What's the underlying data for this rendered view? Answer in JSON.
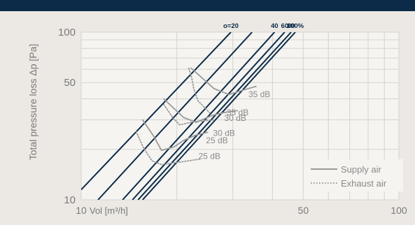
{
  "chart_data": {
    "type": "line",
    "xscale": "log",
    "yscale": "log",
    "xlim": [
      10,
      100
    ],
    "ylim": [
      10,
      100
    ],
    "grid": true,
    "legend": "bottom-right",
    "xlabel": "Vol [m³/h]",
    "ylabel": "Total pressure loss Δp [Pa]",
    "x_ticks": [
      {
        "value": 10,
        "label": "10"
      },
      {
        "value": 50,
        "label": "50"
      },
      {
        "value": 100,
        "label": "100"
      }
    ],
    "y_ticks": [
      {
        "value": 10,
        "label": "10"
      },
      {
        "value": 50,
        "label": "50"
      },
      {
        "value": 100,
        "label": "100"
      }
    ],
    "opening_lines": [
      {
        "label": "o=20",
        "points": [
          [
            10,
            11.5
          ],
          [
            29.6,
            100
          ]
        ]
      },
      {
        "label": "",
        "points": [
          [
            11.3,
            10
          ],
          [
            34.5,
            100
          ]
        ]
      },
      {
        "label": "40",
        "points": [
          [
            13.5,
            10
          ],
          [
            40.6,
            100
          ]
        ]
      },
      {
        "label": "60",
        "points": [
          [
            14.5,
            10
          ],
          [
            43.7,
            100
          ]
        ]
      },
      {
        "label": "80",
        "points": [
          [
            15.1,
            10
          ],
          [
            45.8,
            100
          ]
        ]
      },
      {
        "label": "100%",
        "points": [
          [
            15.6,
            10
          ],
          [
            47.2,
            100
          ]
        ]
      }
    ],
    "series": [
      {
        "name": "Supply air",
        "style": "solid",
        "values": [
          [
            22.2,
            61
          ],
          [
            26.2,
            46
          ],
          [
            29.2,
            42.5
          ],
          [
            32.4,
            45.2
          ],
          [
            35.5,
            47.5
          ]
        ]
      },
      {
        "name": "",
        "style": "solid",
        "values": [
          [
            18.2,
            40
          ],
          [
            21,
            31
          ],
          [
            23,
            29
          ],
          [
            26,
            32
          ],
          [
            28.5,
            33.3
          ],
          [
            31,
            34
          ]
        ]
      },
      {
        "name": "",
        "style": "solid",
        "values": [
          [
            15.6,
            30
          ],
          [
            16.9,
            24
          ],
          [
            17.9,
            19.7
          ],
          [
            19.6,
            20.7
          ],
          [
            21,
            22.6
          ],
          [
            22.9,
            24.3
          ],
          [
            25,
            25.3
          ]
        ]
      },
      {
        "name": "Exhaust air",
        "style": "dotted",
        "values": [
          [
            21.8,
            61
          ],
          [
            22.3,
            53
          ],
          [
            22.6,
            46
          ],
          [
            23.3,
            39
          ],
          [
            25.4,
            33
          ]
        ]
      },
      {
        "name": "",
        "style": "dotted",
        "values": [
          [
            18.2,
            37
          ],
          [
            19.4,
            31
          ],
          [
            20.4,
            28
          ],
          [
            22.7,
            29.3
          ],
          [
            26,
            30
          ]
        ]
      },
      {
        "name": "",
        "style": "dotted",
        "values": [
          [
            14.9,
            25.5
          ],
          [
            15.7,
            20.5
          ],
          [
            16.7,
            17.1
          ],
          [
            17.9,
            16.2
          ],
          [
            20.1,
            16.7
          ],
          [
            23.6,
            17.5
          ]
        ]
      }
    ],
    "annotations": [
      {
        "text": "35 dB",
        "x": 33.6,
        "y": 41
      },
      {
        "text": "35 dB",
        "x": 28.7,
        "y": 32
      },
      {
        "text": "30 dB",
        "x": 28.2,
        "y": 29.6
      },
      {
        "text": "30 dB",
        "x": 26,
        "y": 24
      },
      {
        "text": "25 dB",
        "x": 24.7,
        "y": 21.8
      },
      {
        "text": "25 dB",
        "x": 23.4,
        "y": 17.5
      }
    ],
    "legend_entries": [
      {
        "label": "Supply air",
        "style": "solid"
      },
      {
        "label": "Exhaust air",
        "style": "dotted"
      }
    ],
    "colors": {
      "opening_lines": "#0c2b49",
      "curves": "#9a9a9a",
      "header": "#0c2b49",
      "background": "#ece9e4",
      "grid": "#d6d3ce"
    }
  }
}
